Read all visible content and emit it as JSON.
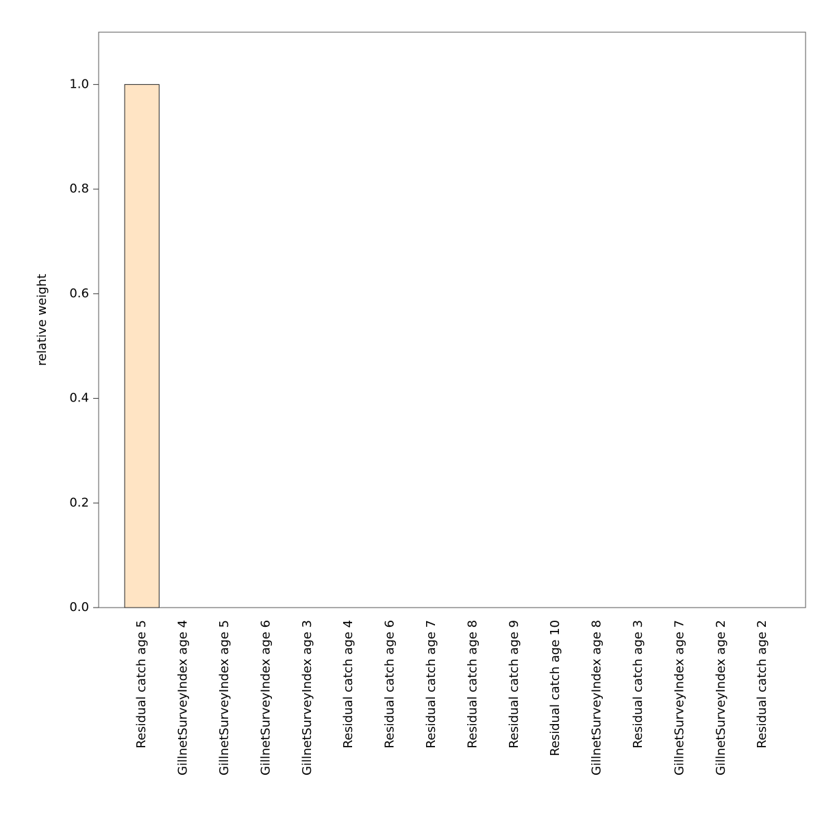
{
  "chart_data": {
    "type": "bar",
    "y_label": "relative weight",
    "categories": [
      "Residual catch age 5",
      "GillnetSurveyIndex age 4",
      "GillnetSurveyIndex age 5",
      "GillnetSurveyIndex age 6",
      "GillnetSurveyIndex age 3",
      "Residual catch age 4",
      "Residual catch age 6",
      "Residual catch age 7",
      "Residual catch age 8",
      "Residual catch age 9",
      "Residual catch age 10",
      "GillnetSurveyIndex age 8",
      "Residual catch age 3",
      "GillnetSurveyIndex age 7",
      "GillnetSurveyIndex age 2",
      "Residual catch age 2"
    ],
    "values": [
      1.0,
      0,
      0,
      0,
      0,
      0,
      0,
      0,
      0,
      0,
      0,
      0,
      0,
      0,
      0,
      0
    ],
    "color": "#FFE4C4",
    "ylim": [
      0,
      1.1
    ],
    "yticks": [
      {
        "value": 0,
        "label": "0.0"
      },
      0.2,
      0.4,
      0.6,
      0.8,
      {
        "value": 1,
        "label": "1.0"
      }
    ],
    "grid": false
  }
}
